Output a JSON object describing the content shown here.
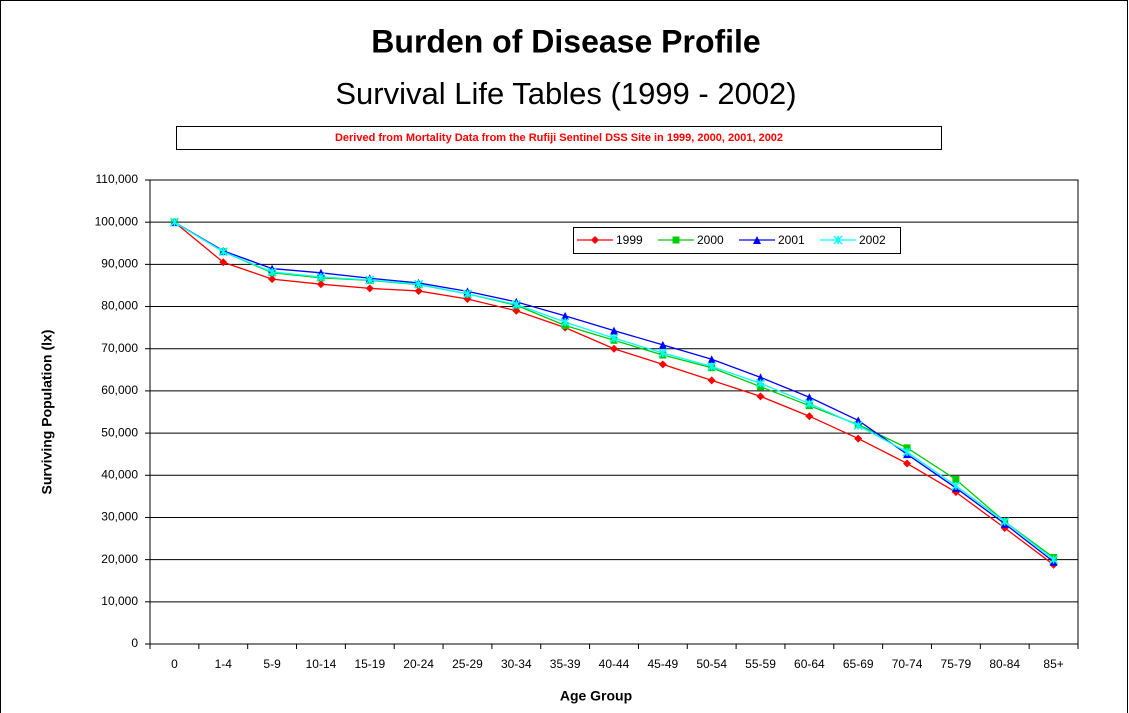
{
  "chart_data": {
    "type": "line",
    "title": "Burden of Disease Profile",
    "subtitle": "Survival Life Tables (1999 - 2002)",
    "note": "Derived from Mortality Data  from the Rufiji Sentinel DSS Site in 1999, 2000, 2001, 2002",
    "xlabel": "Age Group",
    "ylabel": "Surviving Population (lx)",
    "categories": [
      "0",
      "1-4",
      "5-9",
      "10-14",
      "15-19",
      "20-24",
      "25-29",
      "30-34",
      "35-39",
      "40-44",
      "45-49",
      "50-54",
      "55-59",
      "60-64",
      "65-69",
      "70-74",
      "75-79",
      "80-84",
      "85+"
    ],
    "series": [
      {
        "name": "1999",
        "color": "#ff0000",
        "marker": "diamond",
        "values": [
          100000,
          90500,
          86500,
          85300,
          84300,
          83700,
          81800,
          79000,
          75000,
          70000,
          66300,
          62500,
          58700,
          54000,
          48700,
          42800,
          36000,
          27500,
          18800
        ]
      },
      {
        "name": "2000",
        "color": "#00cc00",
        "marker": "square",
        "values": [
          100000,
          93000,
          88000,
          86800,
          86200,
          85200,
          83000,
          80300,
          75500,
          72000,
          68500,
          65500,
          61000,
          56500,
          52000,
          46500,
          39000,
          29000,
          20500
        ]
      },
      {
        "name": "2001",
        "color": "#0000ff",
        "marker": "triangle",
        "values": [
          100000,
          93200,
          89000,
          88000,
          86700,
          85600,
          83600,
          81100,
          77800,
          74300,
          70900,
          67500,
          63200,
          58500,
          53000,
          45000,
          37000,
          28500,
          19500
        ]
      },
      {
        "name": "2002",
        "color": "#00ffff",
        "marker": "x",
        "values": [
          100000,
          93000,
          88200,
          87000,
          86300,
          85300,
          83000,
          80500,
          76300,
          72500,
          69000,
          65800,
          61800,
          57000,
          51800,
          45500,
          37500,
          29000,
          20000
        ]
      }
    ],
    "ylim": [
      0,
      110000
    ],
    "yticks": [
      0,
      {
        "value": 10000,
        "label": "10,000"
      },
      {
        "value": 20000,
        "label": "20,000"
      },
      {
        "value": 30000,
        "label": "30,000"
      },
      {
        "value": 40000,
        "label": "40,000"
      },
      {
        "value": 50000,
        "label": "50,000"
      },
      {
        "value": 60000,
        "label": "60,000"
      },
      {
        "value": 70000,
        "label": "70,000"
      },
      {
        "value": 80000,
        "label": "80,000"
      },
      {
        "value": 90000,
        "label": "90,000"
      },
      {
        "value": 100000,
        "label": "100,000"
      },
      {
        "value": 110000,
        "label": "110,000"
      }
    ],
    "grid": true,
    "legend": "top-right"
  }
}
